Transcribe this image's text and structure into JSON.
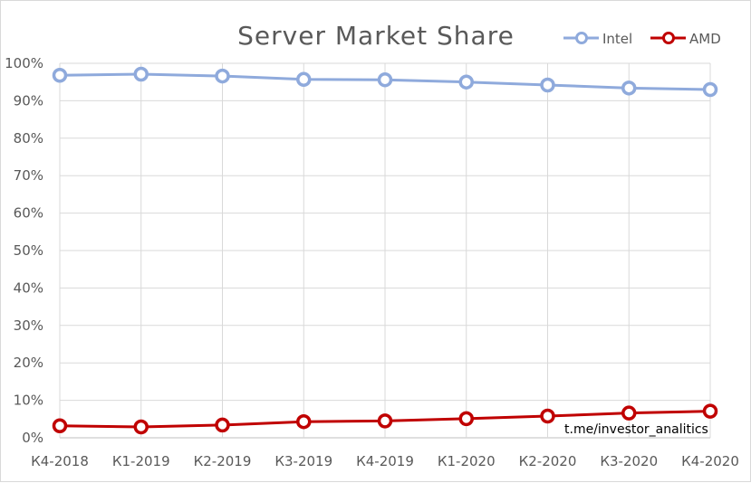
{
  "chart_data": {
    "type": "line",
    "title": "Server Market Share",
    "categories": [
      "К4-2018",
      "К1-2019",
      "К2-2019",
      "К3-2019",
      "К4-2019",
      "К1-2020",
      "К2-2020",
      "К3-2020",
      "К4-2020"
    ],
    "series": [
      {
        "name": "Intel",
        "color": "#8faadc",
        "values": [
          96.8,
          97.1,
          96.6,
          95.7,
          95.6,
          95.0,
          94.2,
          93.4,
          93.0
        ]
      },
      {
        "name": "AMD",
        "color": "#c00000",
        "values": [
          3.2,
          2.9,
          3.4,
          4.3,
          4.5,
          5.1,
          5.8,
          6.6,
          7.1
        ]
      }
    ],
    "ylim": [
      0,
      100
    ],
    "yticks": [
      "0%",
      "10%",
      "20%",
      "30%",
      "40%",
      "50%",
      "60%",
      "70%",
      "80%",
      "90%",
      "100%"
    ],
    "xlabel": "",
    "ylabel": "",
    "grid": true,
    "legend_position": "top-right",
    "watermark": "t.me/investor_analitics"
  }
}
